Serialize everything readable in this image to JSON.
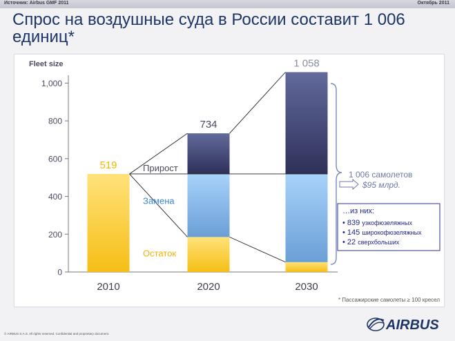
{
  "header": {
    "source": "Источник: Airbus GMF 2011",
    "date": "Октябрь 2011"
  },
  "title": "Спрос на воздушные суда в России составит 1 006 единиц*",
  "chart_data": {
    "type": "bar",
    "stacked": true,
    "ylabel": "Fleet size",
    "ylim": [
      0,
      1100
    ],
    "y_ticks": [
      0,
      200,
      400,
      600,
      800,
      1000
    ],
    "y_tick_labels": [
      "0",
      "200",
      "400",
      "600",
      "800",
      "1,000"
    ],
    "categories": [
      "2010",
      "2020",
      "2030"
    ],
    "totals_labels": [
      "519",
      "734",
      "1 058"
    ],
    "series": [
      {
        "name": "Остаток",
        "values": [
          519,
          185,
          52
        ]
      },
      {
        "name": "Замена",
        "values": [
          0,
          334,
          467
        ]
      },
      {
        "name": "Прирост",
        "values": [
          0,
          215,
          539
        ]
      }
    ],
    "grid": false,
    "legend": "inline"
  },
  "annotations": {
    "demand_total": "1 006 самолетов",
    "demand_value": "$95 млрд.",
    "breakdown_title": "…из них:",
    "breakdown": [
      {
        "bullet": "•",
        "num": "839",
        "text": "узкофюзеляжных"
      },
      {
        "bullet": "•",
        "num": "145",
        "text": "широкофюзеляжных"
      },
      {
        "bullet": "•",
        "num": "22",
        "text": "сверхбольших"
      }
    ],
    "footnote": "* Пассажирские самолеты ≥ 100 кресел"
  },
  "footer": {
    "copyright": "© AIRBUS S.A.S. All rights reserved. Confidential and proprietary document.",
    "logo": "AIRBUS"
  },
  "colors": {
    "remaining_top": "#ffe27a",
    "remaining_bottom": "#f6be16",
    "replacement_top": "#a8d2fa",
    "replacement_bottom": "#6a9fd6",
    "growth_top": "#626a9c",
    "growth_bottom": "#2e3058",
    "title": "#1c3566",
    "brace": "#7888bb"
  }
}
